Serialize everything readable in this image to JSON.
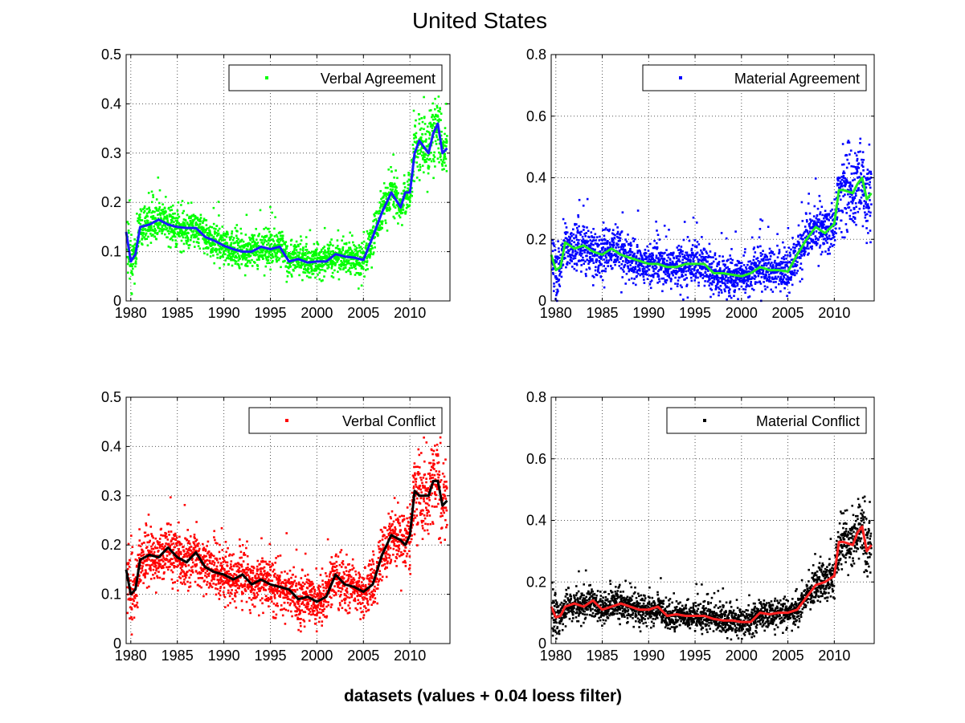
{
  "figure": {
    "title": "United States",
    "footer": "datasets (values + 0.04 loess filter)"
  },
  "chart_data": [
    {
      "type": "scatter",
      "legend": "Verbal Agreement",
      "legend_position": "top-right",
      "grid": true,
      "xlim": [
        1979.5,
        2014.3
      ],
      "ylim": [
        0,
        0.5
      ],
      "xticks": [
        1980,
        1985,
        1990,
        1995,
        2000,
        2005,
        2010
      ],
      "yticks": [
        0,
        0.1,
        0.2,
        0.3,
        0.4,
        0.5
      ],
      "ytick_labels": [
        "0",
        "0.1",
        "0.2",
        "0.3",
        "0.4",
        "0.5"
      ],
      "point_color": "#00ff00",
      "line_color": "#1a1aff",
      "scatter_spread": 0.038,
      "smooth": [
        [
          1979.5,
          0.14
        ],
        [
          1980.0,
          0.08
        ],
        [
          1980.5,
          0.095
        ],
        [
          1981.0,
          0.15
        ],
        [
          1982.0,
          0.155
        ],
        [
          1983.0,
          0.165
        ],
        [
          1984.0,
          0.155
        ],
        [
          1985.0,
          0.15
        ],
        [
          1986.0,
          0.148
        ],
        [
          1987.0,
          0.148
        ],
        [
          1988.0,
          0.13
        ],
        [
          1989.0,
          0.122
        ],
        [
          1990.0,
          0.112
        ],
        [
          1991.0,
          0.105
        ],
        [
          1992.0,
          0.1
        ],
        [
          1993.0,
          0.1
        ],
        [
          1994.0,
          0.11
        ],
        [
          1995.0,
          0.105
        ],
        [
          1996.0,
          0.11
        ],
        [
          1997.0,
          0.08
        ],
        [
          1998.0,
          0.085
        ],
        [
          1999.0,
          0.078
        ],
        [
          2000.0,
          0.08
        ],
        [
          2001.0,
          0.08
        ],
        [
          2002.0,
          0.095
        ],
        [
          2003.0,
          0.09
        ],
        [
          2004.0,
          0.088
        ],
        [
          2005.0,
          0.083
        ],
        [
          2006.0,
          0.13
        ],
        [
          2007.0,
          0.18
        ],
        [
          2008.0,
          0.22
        ],
        [
          2009.0,
          0.19
        ],
        [
          2009.5,
          0.22
        ],
        [
          2010.0,
          0.22
        ],
        [
          2010.5,
          0.3
        ],
        [
          2011.0,
          0.325
        ],
        [
          2012.0,
          0.3
        ],
        [
          2012.5,
          0.34
        ],
        [
          2013.0,
          0.36
        ],
        [
          2013.5,
          0.3
        ],
        [
          2014.0,
          0.31
        ]
      ]
    },
    {
      "type": "scatter",
      "legend": "Material Agreement",
      "legend_position": "top-right",
      "grid": true,
      "xlim": [
        1979.5,
        2014.3
      ],
      "ylim": [
        0,
        0.8
      ],
      "xticks": [
        1980,
        1985,
        1990,
        1995,
        2000,
        2005,
        2010
      ],
      "yticks": [
        0,
        0.2,
        0.4,
        0.6,
        0.8
      ],
      "ytick_labels": [
        "0",
        "0.2",
        "0.4",
        "0.6",
        "0.8"
      ],
      "point_color": "#0000ff",
      "line_color": "#22ee22",
      "scatter_spread": 0.07,
      "smooth": [
        [
          1979.5,
          0.15
        ],
        [
          1980.0,
          0.1
        ],
        [
          1980.5,
          0.11
        ],
        [
          1981.0,
          0.19
        ],
        [
          1982.0,
          0.17
        ],
        [
          1983.0,
          0.18
        ],
        [
          1984.0,
          0.16
        ],
        [
          1985.0,
          0.15
        ],
        [
          1986.0,
          0.17
        ],
        [
          1987.0,
          0.15
        ],
        [
          1988.0,
          0.14
        ],
        [
          1989.0,
          0.13
        ],
        [
          1990.0,
          0.12
        ],
        [
          1991.0,
          0.12
        ],
        [
          1992.0,
          0.11
        ],
        [
          1993.0,
          0.11
        ],
        [
          1994.0,
          0.12
        ],
        [
          1995.0,
          0.12
        ],
        [
          1996.0,
          0.12
        ],
        [
          1997.0,
          0.09
        ],
        [
          1998.0,
          0.09
        ],
        [
          1999.0,
          0.085
        ],
        [
          2000.0,
          0.08
        ],
        [
          2001.0,
          0.09
        ],
        [
          2002.0,
          0.11
        ],
        [
          2003.0,
          0.1
        ],
        [
          2004.0,
          0.1
        ],
        [
          2005.0,
          0.095
        ],
        [
          2006.0,
          0.15
        ],
        [
          2007.0,
          0.2
        ],
        [
          2008.0,
          0.24
        ],
        [
          2009.0,
          0.22
        ],
        [
          2010.0,
          0.25
        ],
        [
          2010.5,
          0.36
        ],
        [
          2011.0,
          0.36
        ],
        [
          2012.0,
          0.35
        ],
        [
          2012.5,
          0.38
        ],
        [
          2013.0,
          0.4
        ],
        [
          2013.5,
          0.33
        ],
        [
          2014.0,
          0.35
        ]
      ]
    },
    {
      "type": "scatter",
      "legend": "Verbal Conflict",
      "legend_position": "top-right",
      "grid": true,
      "xlim": [
        1979.5,
        2014.3
      ],
      "ylim": [
        0,
        0.5
      ],
      "xticks": [
        1980,
        1985,
        1990,
        1995,
        2000,
        2005,
        2010
      ],
      "yticks": [
        0,
        0.1,
        0.2,
        0.3,
        0.4,
        0.5
      ],
      "ytick_labels": [
        "0",
        "0.1",
        "0.2",
        "0.3",
        "0.4",
        "0.5"
      ],
      "point_color": "#ff0000",
      "line_color": "#000000",
      "scatter_spread": 0.05,
      "smooth": [
        [
          1979.5,
          0.15
        ],
        [
          1980.0,
          0.1
        ],
        [
          1980.5,
          0.11
        ],
        [
          1981.0,
          0.17
        ],
        [
          1982.0,
          0.18
        ],
        [
          1983.0,
          0.175
        ],
        [
          1984.0,
          0.195
        ],
        [
          1985.0,
          0.175
        ],
        [
          1986.0,
          0.165
        ],
        [
          1987.0,
          0.185
        ],
        [
          1988.0,
          0.155
        ],
        [
          1989.0,
          0.145
        ],
        [
          1990.0,
          0.14
        ],
        [
          1991.0,
          0.13
        ],
        [
          1992.0,
          0.14
        ],
        [
          1993.0,
          0.12
        ],
        [
          1994.0,
          0.13
        ],
        [
          1995.0,
          0.12
        ],
        [
          1996.0,
          0.115
        ],
        [
          1997.0,
          0.11
        ],
        [
          1998.0,
          0.09
        ],
        [
          1999.0,
          0.095
        ],
        [
          2000.0,
          0.085
        ],
        [
          2001.0,
          0.095
        ],
        [
          2002.0,
          0.14
        ],
        [
          2003.0,
          0.12
        ],
        [
          2004.0,
          0.115
        ],
        [
          2005.0,
          0.105
        ],
        [
          2006.0,
          0.12
        ],
        [
          2007.0,
          0.18
        ],
        [
          2008.0,
          0.22
        ],
        [
          2009.0,
          0.21
        ],
        [
          2009.5,
          0.2
        ],
        [
          2010.0,
          0.22
        ],
        [
          2010.5,
          0.31
        ],
        [
          2011.0,
          0.3
        ],
        [
          2012.0,
          0.3
        ],
        [
          2012.5,
          0.33
        ],
        [
          2013.0,
          0.33
        ],
        [
          2013.5,
          0.28
        ],
        [
          2014.0,
          0.29
        ]
      ]
    },
    {
      "type": "scatter",
      "legend": "Material Conflict",
      "legend_position": "top-right",
      "grid": true,
      "xlim": [
        1979.5,
        2014.3
      ],
      "ylim": [
        0,
        0.8
      ],
      "xticks": [
        1980,
        1985,
        1990,
        1995,
        2000,
        2005,
        2010
      ],
      "yticks": [
        0,
        0.2,
        0.4,
        0.6,
        0.8
      ],
      "ytick_labels": [
        "0",
        "0.2",
        "0.4",
        "0.6",
        "0.8"
      ],
      "point_color": "#000000",
      "line_color": "#ff2020",
      "scatter_spread": 0.05,
      "smooth": [
        [
          1979.5,
          0.12
        ],
        [
          1980.0,
          0.085
        ],
        [
          1980.5,
          0.09
        ],
        [
          1981.0,
          0.12
        ],
        [
          1982.0,
          0.13
        ],
        [
          1983.0,
          0.12
        ],
        [
          1984.0,
          0.14
        ],
        [
          1985.0,
          0.11
        ],
        [
          1986.0,
          0.12
        ],
        [
          1987.0,
          0.13
        ],
        [
          1988.0,
          0.12
        ],
        [
          1989.0,
          0.11
        ],
        [
          1990.0,
          0.11
        ],
        [
          1991.0,
          0.12
        ],
        [
          1992.0,
          0.09
        ],
        [
          1993.0,
          0.095
        ],
        [
          1994.0,
          0.09
        ],
        [
          1995.0,
          0.09
        ],
        [
          1996.0,
          0.09
        ],
        [
          1997.0,
          0.08
        ],
        [
          1998.0,
          0.075
        ],
        [
          1999.0,
          0.075
        ],
        [
          2000.0,
          0.07
        ],
        [
          2001.0,
          0.07
        ],
        [
          2002.0,
          0.1
        ],
        [
          2003.0,
          0.095
        ],
        [
          2004.0,
          0.1
        ],
        [
          2005.0,
          0.1
        ],
        [
          2006.0,
          0.11
        ],
        [
          2007.0,
          0.15
        ],
        [
          2008.0,
          0.19
        ],
        [
          2009.0,
          0.2
        ],
        [
          2010.0,
          0.22
        ],
        [
          2010.5,
          0.33
        ],
        [
          2011.0,
          0.33
        ],
        [
          2012.0,
          0.32
        ],
        [
          2012.5,
          0.36
        ],
        [
          2013.0,
          0.38
        ],
        [
          2013.5,
          0.3
        ],
        [
          2014.0,
          0.32
        ]
      ]
    }
  ]
}
